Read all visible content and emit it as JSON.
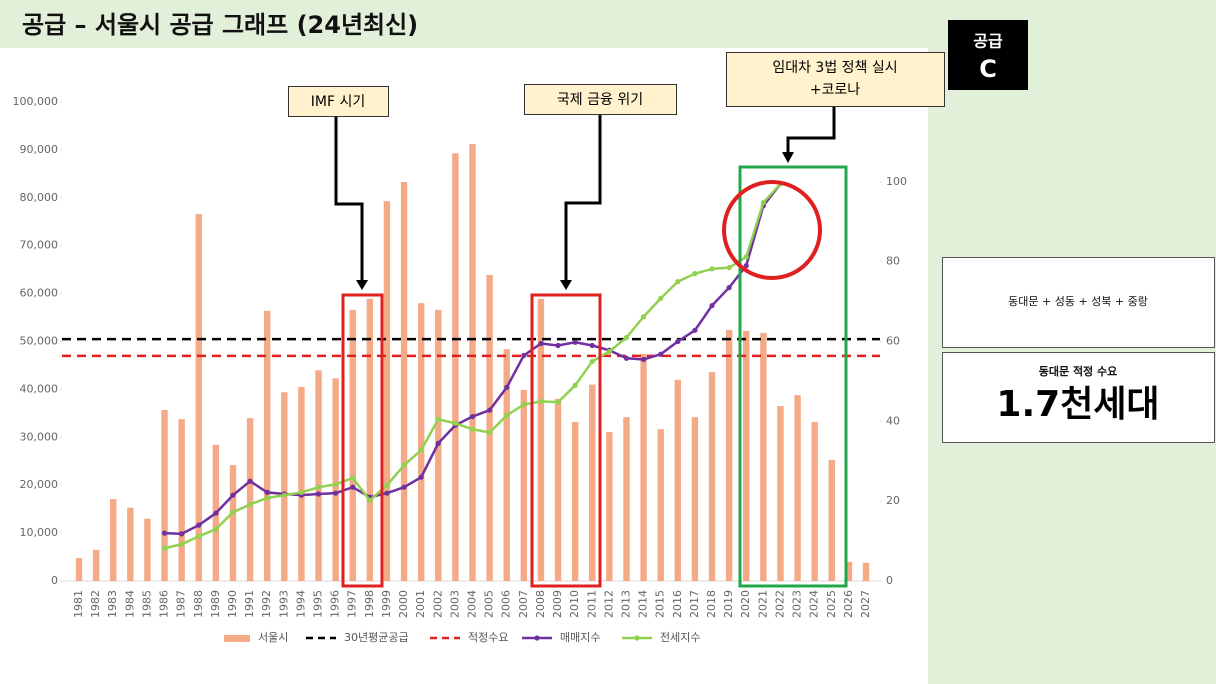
{
  "header": {
    "title": "공급 – 서울시 공급 그래프 (24년최신)"
  },
  "badge": {
    "line1": "공급",
    "line2": "C"
  },
  "side_panel": {
    "region": "동대문 + 성동 + 성북 + 중랑",
    "demand_label": "동대문 적정 수요",
    "demand_value": "1.7천세대"
  },
  "chart_data": {
    "type": "bar",
    "categories": [
      "1981",
      "1982",
      "1983",
      "1984",
      "1985",
      "1986",
      "1987",
      "1988",
      "1989",
      "1990",
      "1991",
      "1992",
      "1993",
      "1994",
      "1995",
      "1996",
      "1997",
      "1998",
      "1999",
      "2000",
      "2001",
      "2002",
      "2003",
      "2004",
      "2005",
      "2006",
      "2007",
      "2008",
      "2009",
      "2010",
      "2011",
      "2012",
      "2013",
      "2014",
      "2015",
      "2016",
      "2017",
      "2018",
      "2019",
      "2020",
      "2021",
      "2022",
      "2023",
      "2024",
      "2025",
      "2026",
      "2027"
    ],
    "series": [
      {
        "name": "서울시",
        "type": "bar",
        "color": "#f4a987",
        "values": [
          4800,
          6500,
          17100,
          15300,
          13000,
          35700,
          33800,
          76600,
          28400,
          24200,
          34000,
          56400,
          39400,
          40500,
          44000,
          42300,
          56600,
          58900,
          79300,
          83300,
          58000,
          56600,
          89300,
          91200,
          63900,
          48400,
          39900,
          58900,
          38000,
          33200,
          41000,
          31100,
          34200,
          47400,
          31700,
          42000,
          34200,
          43600,
          52400,
          52200,
          51800,
          36500,
          38800,
          33200,
          25300,
          4000,
          3800
        ]
      },
      {
        "name": "매매지수",
        "type": "line",
        "axis": "y2",
        "color": "#7030a0",
        "values": [
          null,
          null,
          null,
          null,
          null,
          12,
          11.8,
          14,
          17,
          21.5,
          25,
          22.2,
          21.8,
          21.5,
          21.8,
          22,
          23.5,
          21,
          22,
          23.5,
          26,
          34.5,
          39,
          41.2,
          42.8,
          48.5,
          56.5,
          59.5,
          59,
          59.8,
          59,
          57.8,
          55.8,
          55.5,
          56.8,
          60,
          62.8,
          69,
          73.5,
          79,
          94,
          99.5,
          null,
          null,
          null,
          null,
          null
        ]
      },
      {
        "name": "전세지수",
        "type": "line",
        "axis": "y2",
        "color": "#92d050",
        "values": [
          null,
          null,
          null,
          null,
          null,
          8.2,
          9.2,
          11.2,
          13,
          17.2,
          19.2,
          20.8,
          21.5,
          22.2,
          23.5,
          24.2,
          25.8,
          20.2,
          24,
          29,
          32.8,
          40.5,
          39.5,
          38,
          37.2,
          41.5,
          44.2,
          45,
          44.8,
          49,
          55,
          57.5,
          61,
          66.2,
          70.8,
          75,
          77,
          78.2,
          78.5,
          81.2,
          94.8,
          99.5,
          null,
          null,
          null,
          null,
          null
        ]
      }
    ],
    "reference_lines": [
      {
        "name": "30년평균공급",
        "color": "#000000",
        "value": 50500
      },
      {
        "name": "적정수요",
        "color": "#e02020",
        "value": 47000
      }
    ],
    "annotations": [
      {
        "lines": [
          "IMF 시기"
        ]
      },
      {
        "lines": [
          "국제 금융 위기"
        ]
      },
      {
        "lines": [
          "임대차 3법 정책 실시",
          "+코로나"
        ]
      }
    ],
    "ylim": [
      0,
      100000
    ],
    "yticks": [
      0,
      {
        "value": 10000,
        "label": "10,000"
      },
      {
        "value": 20000,
        "label": "20,000"
      },
      {
        "value": 30000,
        "label": "30,000"
      },
      {
        "value": 40000,
        "label": "40,000"
      },
      {
        "value": 50000,
        "label": "50,000"
      },
      {
        "value": 60000,
        "label": "60,000"
      },
      {
        "value": 70000,
        "label": "70,000"
      },
      {
        "value": 80000,
        "label": "80,000"
      },
      {
        "value": 90000,
        "label": "90,000"
      },
      {
        "value": 100000,
        "label": "100,000"
      }
    ],
    "y2lim": [
      0,
      120
    ],
    "y2ticks": [
      0,
      20,
      40,
      60,
      80,
      100
    ],
    "grid": true
  }
}
